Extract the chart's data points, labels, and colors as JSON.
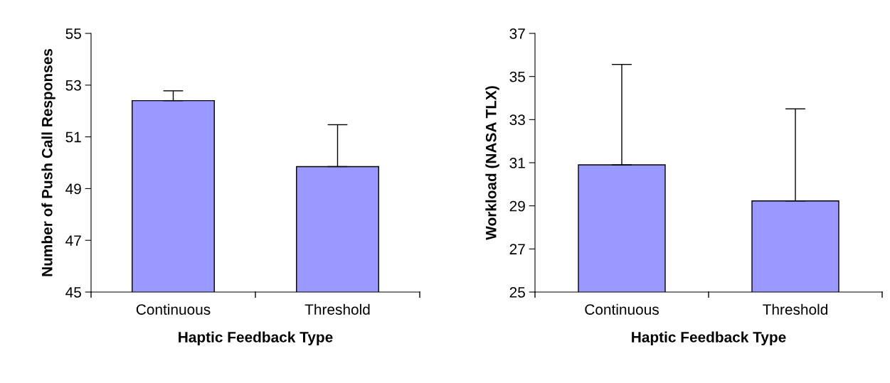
{
  "chart_data": [
    {
      "type": "bar",
      "xlabel": "Haptic Feedback Type",
      "ylabel": "Number of Push Call Responses",
      "categories": [
        "Continuous",
        "Threshold"
      ],
      "values": [
        52.4,
        49.85
      ],
      "errors": [
        [
          52.4,
          52.78
        ],
        [
          49.85,
          51.47
        ]
      ],
      "color": "#9999ff",
      "ylim": [
        45,
        55
      ],
      "yticks": [
        45,
        47,
        49,
        51,
        53,
        55
      ],
      "grid": false
    },
    {
      "type": "bar",
      "xlabel": "Haptic Feedback Type",
      "ylabel": "Workload (NASA TLX)",
      "categories": [
        "Continuous",
        "Threshold"
      ],
      "values": [
        30.9,
        29.23
      ],
      "errors": [
        [
          30.9,
          35.56
        ],
        [
          29.23,
          33.5
        ]
      ],
      "color": "#9999ff",
      "ylim": [
        25,
        37
      ],
      "yticks": [
        25,
        27,
        29,
        31,
        33,
        35,
        37
      ],
      "grid": false
    }
  ]
}
